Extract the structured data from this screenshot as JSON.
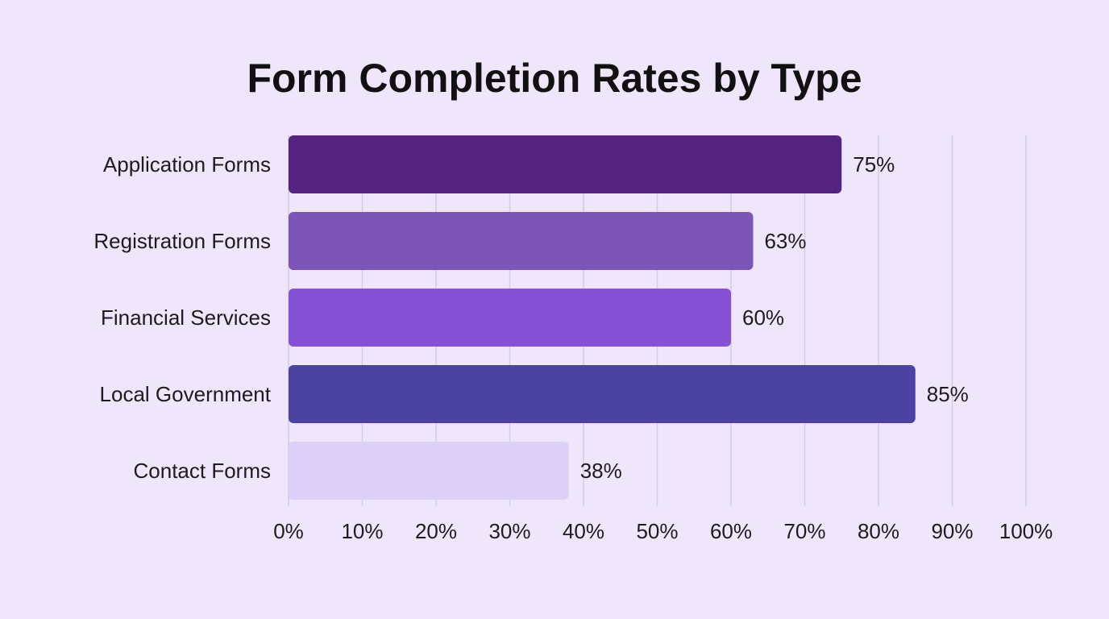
{
  "chart_data": {
    "type": "bar",
    "orientation": "horizontal",
    "title": "Form Completion Rates by Type",
    "xlabel": "",
    "ylabel": "",
    "categories": [
      "Application Forms",
      "Registration Forms",
      "Financial Services",
      "Local Government",
      "Contact Forms"
    ],
    "values": [
      75,
      63,
      60,
      85,
      38
    ],
    "value_labels": [
      "75%",
      "63%",
      "60%",
      "85%",
      "38%"
    ],
    "bar_colors": [
      "#53237f",
      "#7d55b7",
      "#8552d6",
      "#4b42a2",
      "#dcd0f6"
    ],
    "xlim": [
      0,
      100
    ],
    "xticks": [
      "0%",
      "10%",
      "20%",
      "30%",
      "40%",
      "50%",
      "60%",
      "70%",
      "80%",
      "90%",
      "100%"
    ],
    "grid": true,
    "legend": "none"
  }
}
